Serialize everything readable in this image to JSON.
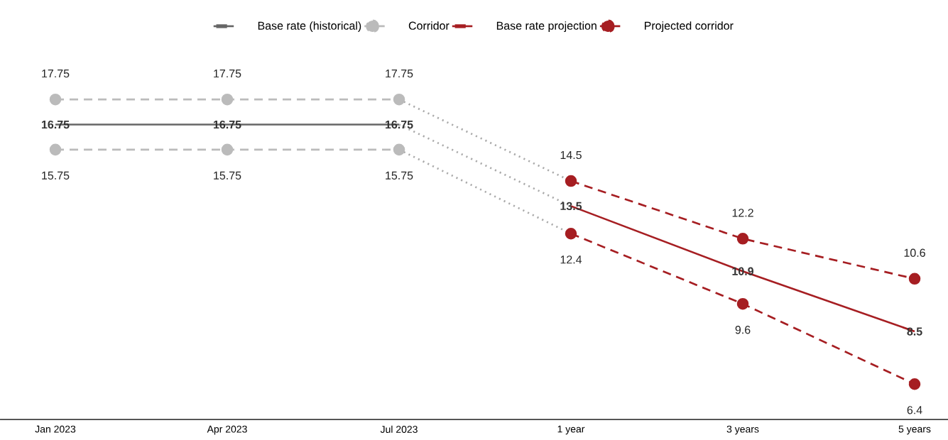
{
  "chart_data": {
    "type": "line",
    "categories": [
      "Jan 2023",
      "Apr 2023",
      "Jul 2023",
      "1 year",
      "3 years",
      "5 years"
    ],
    "legend": "top",
    "series": [
      {
        "name": "Base rate (historical)",
        "color": "#666666",
        "line_style": "solid",
        "marker": "none",
        "values": [
          16.75,
          16.75,
          16.75,
          null,
          null,
          null
        ],
        "value_labels": [
          "16.75",
          "16.75",
          "16.75",
          null,
          null,
          null
        ]
      },
      {
        "name": "Corridor",
        "color": "#bbbbbb",
        "line_style": "dashed",
        "marker": "circle",
        "values": [
          17.75,
          17.75,
          17.75,
          null,
          null,
          null
        ],
        "value_labels": [
          "17.75",
          "17.75",
          "17.75",
          null,
          null,
          null
        ]
      },
      {
        "color": "#bbbbbb",
        "line_style": "dashed",
        "marker": "circle",
        "values": [
          15.75,
          15.75,
          15.75,
          null,
          null,
          null
        ],
        "value_labels": [
          "15.75",
          "15.75",
          "15.75",
          null,
          null,
          null
        ]
      },
      {
        "name": "Base rate projection",
        "color": "#a61e22",
        "line_style": "solid",
        "marker": "none",
        "values": [
          null,
          null,
          null,
          13.5,
          10.9,
          8.5
        ],
        "value_labels": [
          null,
          null,
          null,
          "13.5",
          "10.9",
          "8.5"
        ]
      },
      {
        "name": "Projected corridor",
        "color": "#a61e22",
        "line_style": "dashed",
        "marker": "circle",
        "values": [
          null,
          null,
          null,
          14.5,
          12.2,
          10.6
        ],
        "value_labels": [
          null,
          null,
          null,
          "14.5",
          "12.2",
          "10.6"
        ]
      },
      {
        "color": "#a61e22",
        "line_style": "dashed",
        "marker": "circle",
        "values": [
          null,
          null,
          null,
          12.4,
          9.6,
          6.4
        ],
        "value_labels": [
          null,
          null,
          null,
          "12.4",
          "9.6",
          "6.4"
        ]
      },
      {
        "color": "#aaaaaa",
        "line_style": "dotted",
        "marker": "none",
        "values": [
          null,
          null,
          17.75,
          14.5,
          null,
          null
        ]
      },
      {
        "color": "#aaaaaa",
        "line_style": "dotted",
        "marker": "none",
        "values": [
          null,
          null,
          16.75,
          13.5,
          null,
          null
        ]
      },
      {
        "color": "#aaaaaa",
        "line_style": "dotted",
        "marker": "none",
        "values": [
          null,
          null,
          15.75,
          12.4,
          null,
          null
        ]
      }
    ]
  }
}
